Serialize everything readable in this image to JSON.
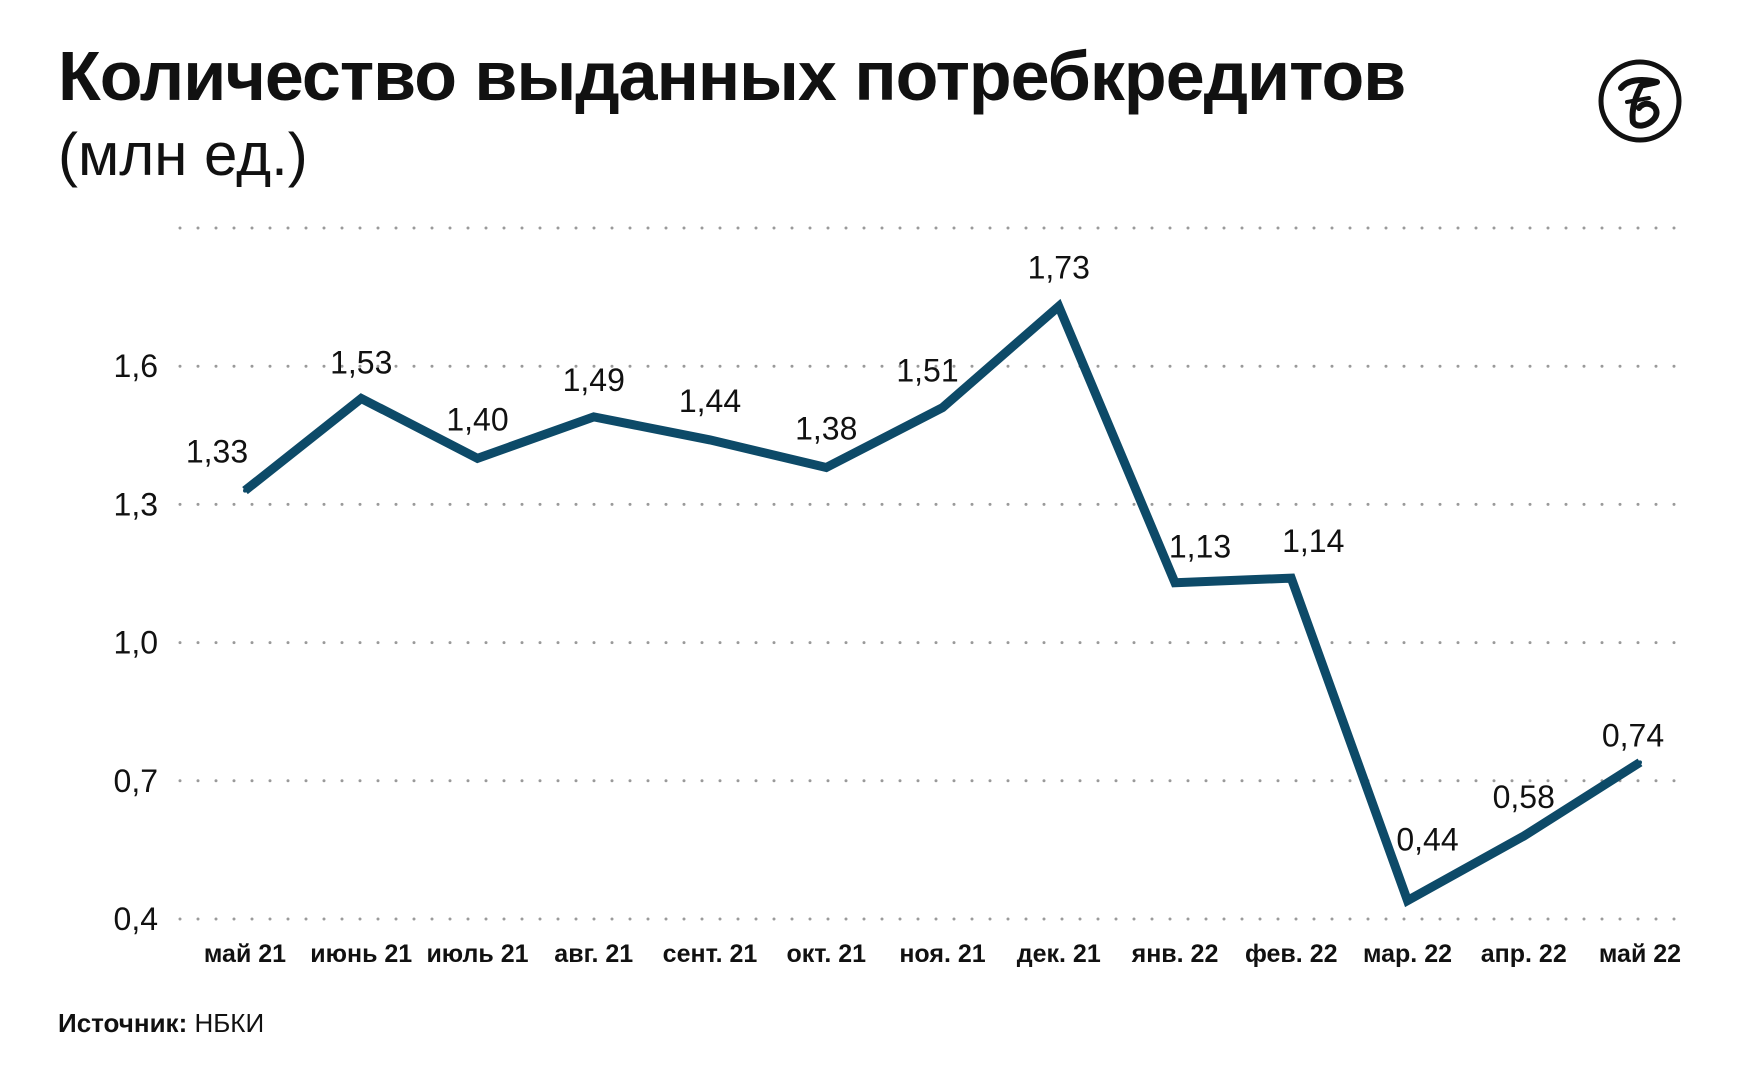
{
  "header": {
    "title": "Количество выданных потребкредитов",
    "subtitle": "(млн ед.)",
    "logo_icon": "newspaper-seal-logo-icon"
  },
  "chart_data": {
    "type": "line",
    "title": "Количество выданных потребкредитов",
    "subtitle": "(млн ед.)",
    "xlabel": "",
    "ylabel": "",
    "categories": [
      "май 21",
      "июнь 21",
      "июль 21",
      "авг. 21",
      "сент. 21",
      "окт. 21",
      "ноя. 21",
      "дек. 21",
      "янв. 22",
      "фев. 22",
      "мар. 22",
      "апр. 22",
      "май 22"
    ],
    "values": [
      1.33,
      1.53,
      1.4,
      1.49,
      1.44,
      1.38,
      1.51,
      1.73,
      1.13,
      1.14,
      0.44,
      0.58,
      0.74
    ],
    "value_labels": [
      "1,33",
      "1,53",
      "1,40",
      "1,49",
      "1,44",
      "1,38",
      "1,51",
      "1,73",
      "1,13",
      "1,14",
      "0,44",
      "0,58",
      "0,74"
    ],
    "yticks": [
      0.4,
      0.7,
      1.0,
      1.3,
      1.6
    ],
    "ytick_labels": [
      "0,4",
      "0,7",
      "1,0",
      "1,3",
      "1,6"
    ],
    "ylim": [
      0.4,
      1.9
    ],
    "grid": true,
    "legend": "none",
    "line_color": "#0d4a68"
  },
  "source": {
    "label": "Источник:",
    "value": "НБКИ"
  }
}
